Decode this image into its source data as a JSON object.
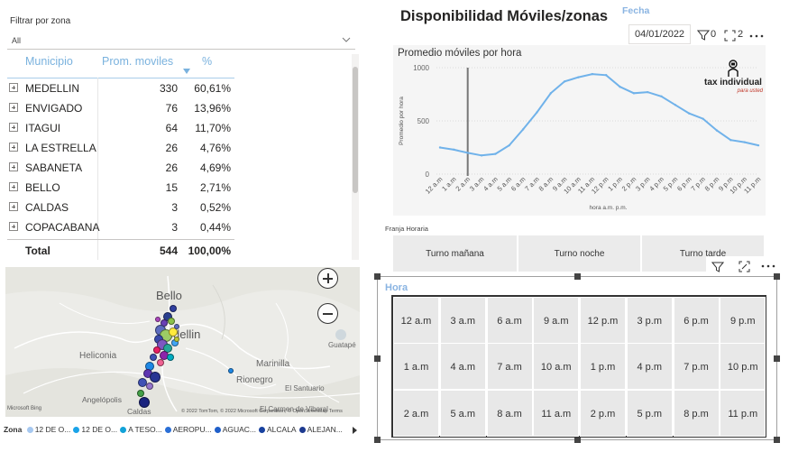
{
  "zone_slicer": {
    "label": "Filtrar por zona",
    "value": "All"
  },
  "table": {
    "headers": {
      "municipio": "Municipio",
      "prom_moviles": "Prom. moviles",
      "pct": "%"
    },
    "rows": [
      {
        "name": "MEDELLIN",
        "avg": "330",
        "pct": "60,61%"
      },
      {
        "name": "ENVIGADO",
        "avg": "76",
        "pct": "13,96%"
      },
      {
        "name": "ITAGUI",
        "avg": "64",
        "pct": "11,70%"
      },
      {
        "name": "LA ESTRELLA",
        "avg": "26",
        "pct": "4,76%"
      },
      {
        "name": "SABANETA",
        "avg": "26",
        "pct": "4,69%"
      },
      {
        "name": "BELLO",
        "avg": "15",
        "pct": "2,71%"
      },
      {
        "name": "CALDAS",
        "avg": "3",
        "pct": "0,52%"
      },
      {
        "name": "COPACABANA",
        "avg": "3",
        "pct": "0,44%"
      }
    ],
    "total": {
      "name": "Total",
      "avg": "544",
      "pct": "100,00%"
    }
  },
  "report_title": "Disponibilidad Móviles/zonas",
  "date_filter": {
    "label": "Fecha",
    "value": "04/01/2022"
  },
  "header_icons": {
    "filter_count": "0",
    "focus_count": "2",
    "more_icon": "more-options-icon"
  },
  "chart_data": {
    "type": "line",
    "title": "Promedio móviles por hora",
    "xlabel": "hora a.m. p.m.",
    "ylabel": "Promedio por hora",
    "ylim": [
      0,
      1000
    ],
    "yticks": [
      "0",
      "500",
      "1000"
    ],
    "categories": [
      "12 a.m",
      "1 a.m",
      "2 a.m",
      "3 a.m",
      "4 a.m",
      "5 a.m",
      "6 a.m",
      "7 a.m",
      "8 a.m",
      "9 a.m",
      "10 a.m",
      "11 a.m",
      "12 p.m",
      "1 p.m",
      "2 p.m",
      "3 p.m",
      "4 p.m",
      "5 p.m",
      "6 p.m",
      "7 p.m",
      "8 p.m",
      "9 p.m",
      "10 p.m",
      "11 p.m"
    ],
    "values": [
      250,
      230,
      200,
      175,
      190,
      270,
      420,
      580,
      760,
      870,
      910,
      940,
      930,
      820,
      760,
      770,
      730,
      650,
      570,
      520,
      410,
      320,
      300,
      270
    ],
    "highlight_category": "2 a.m",
    "color": "#70b2ea",
    "grid": true
  },
  "logo": {
    "text": "tax individual",
    "subtext": "para usted"
  },
  "shift_slicer": {
    "label": "Franja Horaria",
    "options": [
      "Turno mañana",
      "Turno noche",
      "Turno tarde"
    ]
  },
  "map": {
    "place_labels": [
      "Bello",
      "Medellin",
      "Heliconia",
      "Marinilla",
      "Rionegro",
      "Angelópolis",
      "Caldas",
      "El Santuario",
      "Guatapé",
      "El Carmen de Viboral"
    ],
    "copyright": "© 2022 TomTom, © 2022 Microsoft Corporation, © OpenStreetMap  Terms",
    "bing": "Microsoft Bing",
    "legend_title": "Zona",
    "legend": [
      {
        "label": "12 DE O...",
        "color": "#a6c8f0"
      },
      {
        "label": "12 DE O...",
        "color": "#1aa3e8"
      },
      {
        "label": "A TESO...",
        "color": "#12a2d8"
      },
      {
        "label": "AEROPU...",
        "color": "#2b6fd6"
      },
      {
        "label": "AGUAC...",
        "color": "#1f5fc9"
      },
      {
        "label": "ALCALA",
        "color": "#18419f"
      },
      {
        "label": "ALEJAN...",
        "color": "#1d3a8f"
      }
    ]
  },
  "hora_slicer": {
    "label": "Hora",
    "rows": [
      [
        "12 a.m",
        "3 a.m",
        "6 a.m",
        "9 a.m",
        "12 p.m",
        "3 p.m",
        "6 p.m",
        "9 p.m"
      ],
      [
        "1 a.m",
        "4 a.m",
        "7 a.m",
        "10 a.m",
        "1 p.m",
        "4 p.m",
        "7 p.m",
        "10 p.m"
      ],
      [
        "2 a.m",
        "5 a.m",
        "8 a.m",
        "11 a.m",
        "2 p.m",
        "5 p.m",
        "8 p.m",
        "11 p.m"
      ]
    ]
  }
}
